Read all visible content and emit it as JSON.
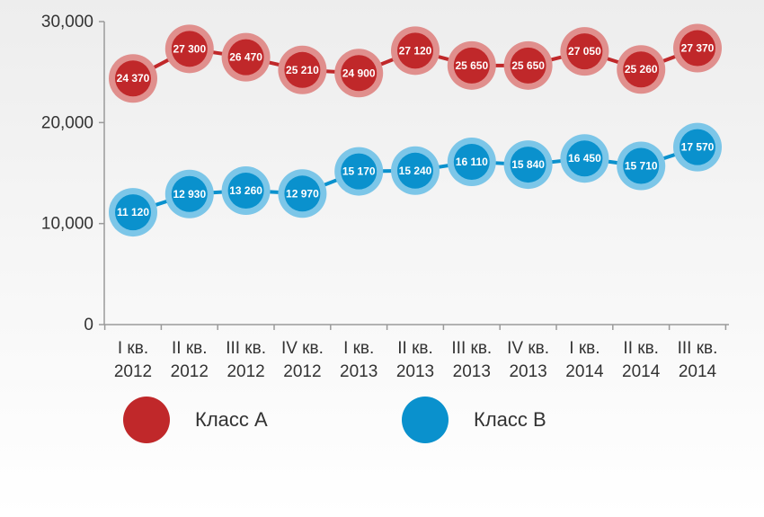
{
  "chart_data": {
    "type": "line",
    "categories": [
      [
        "I кв.",
        "2012"
      ],
      [
        "II кв.",
        "2012"
      ],
      [
        "III кв.",
        "2012"
      ],
      [
        "IV кв.",
        "2012"
      ],
      [
        "I кв.",
        "2013"
      ],
      [
        "II кв.",
        "2013"
      ],
      [
        "III кв.",
        "2013"
      ],
      [
        "IV кв.",
        "2013"
      ],
      [
        "I кв.",
        "2014"
      ],
      [
        "II кв.",
        "2014"
      ],
      [
        "III кв.",
        "2014"
      ]
    ],
    "series": [
      {
        "name": "Класс А",
        "color": "#c0282a",
        "halo": "#e08f8d",
        "values": [
          24370,
          27300,
          26470,
          25210,
          24900,
          27120,
          25650,
          25650,
          27050,
          25260,
          27370
        ],
        "labels": [
          "24 370",
          "27 300",
          "26 470",
          "25 210",
          "24 900",
          "27 120",
          "25 650",
          "25 650",
          "27 050",
          "25 260",
          "27 370"
        ]
      },
      {
        "name": "Класс В",
        "color": "#0a91cd",
        "halo": "#7cc6e8",
        "values": [
          11120,
          12930,
          13260,
          12970,
          15170,
          15240,
          16110,
          15840,
          16450,
          15710,
          17570
        ],
        "labels": [
          "11 120",
          "12 930",
          "13 260",
          "12 970",
          "15 170",
          "15 240",
          "16 110",
          "15 840",
          "16 450",
          "15 710",
          "17 570"
        ]
      }
    ],
    "yticks": [
      0,
      10000,
      20000,
      30000
    ],
    "ytick_labels": [
      "0",
      "10,000",
      "20,000",
      "30,000"
    ],
    "ylim": [
      0,
      30000
    ],
    "grid": false,
    "legend_position": "bottom"
  },
  "legend": {
    "a_label": "Класс А",
    "b_label": "Класс В"
  }
}
